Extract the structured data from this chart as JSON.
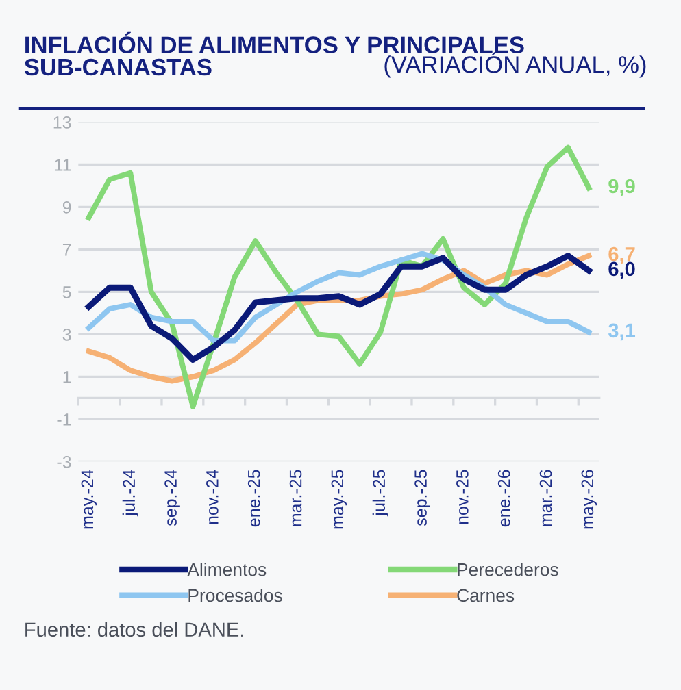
{
  "chart_data": {
    "type": "line",
    "title": "INFLACIÓN DE ALIMENTOS Y PRINCIPALES SUB-CANASTAS",
    "subtitle": "(VARIACIÓN ANUAL, %)",
    "categories": [
      "may.-24",
      null,
      "jul.-24",
      null,
      "sep.-24",
      null,
      "nov.-24",
      null,
      "ene.-25",
      null,
      "mar.-25",
      null,
      "may.-25",
      null,
      "jul.-25",
      null,
      "sep.-25",
      null,
      "nov.-25",
      null,
      "ene.-26",
      null,
      "mar.-26",
      null,
      "may.-26"
    ],
    "series": [
      {
        "name": "Alimentos",
        "color": "#0b1a78",
        "values": [
          4.3,
          5.2,
          5.2,
          3.4,
          2.8,
          1.8,
          2.4,
          3.2,
          4.5,
          4.6,
          4.7,
          4.7,
          4.8,
          4.4,
          4.9,
          6.2,
          6.2,
          6.6,
          5.6,
          5.1,
          5.1,
          5.8,
          6.2,
          6.7,
          6.0
        ],
        "value_labels": [
          null,
          null,
          null,
          null,
          null,
          null,
          null,
          null,
          null,
          null,
          null,
          null,
          null,
          null,
          null,
          null,
          null,
          null,
          null,
          null,
          null,
          null,
          null,
          null,
          "6,0"
        ]
      },
      {
        "name": "Procesados",
        "color": "#8ec6f0",
        "values": [
          3.3,
          4.2,
          4.4,
          3.8,
          3.6,
          3.6,
          2.7,
          2.7,
          3.8,
          4.4,
          5.0,
          5.5,
          5.9,
          5.8,
          6.2,
          6.5,
          6.8,
          6.5,
          5.8,
          5.2,
          4.4,
          4.0,
          3.6,
          3.6,
          3.1
        ],
        "value_labels": [
          null,
          null,
          null,
          null,
          null,
          null,
          null,
          null,
          null,
          null,
          null,
          null,
          null,
          null,
          null,
          null,
          null,
          null,
          null,
          null,
          null,
          null,
          null,
          null,
          "3,1"
        ]
      },
      {
        "name": "Perecederos",
        "color": "#84d877",
        "values": [
          8.5,
          10.3,
          10.6,
          5.0,
          3.5,
          -0.4,
          2.6,
          5.7,
          7.4,
          5.9,
          4.6,
          3.0,
          2.9,
          1.6,
          3.1,
          6.5,
          6.2,
          7.5,
          5.2,
          4.4,
          5.4,
          8.5,
          10.9,
          11.8,
          9.9
        ],
        "value_labels": [
          null,
          null,
          null,
          null,
          null,
          null,
          null,
          null,
          null,
          null,
          null,
          null,
          null,
          null,
          null,
          null,
          null,
          null,
          null,
          null,
          null,
          null,
          null,
          null,
          "9,9"
        ]
      },
      {
        "name": "Carnes",
        "color": "#f6b174",
        "values": [
          2.2,
          1.9,
          1.3,
          1.0,
          0.8,
          1.0,
          1.3,
          1.8,
          2.6,
          3.5,
          4.4,
          4.6,
          4.6,
          4.6,
          4.8,
          4.9,
          5.1,
          5.6,
          6.0,
          5.4,
          5.8,
          6.0,
          5.8,
          6.3,
          6.7
        ],
        "value_labels": [
          null,
          null,
          null,
          null,
          null,
          null,
          null,
          null,
          null,
          null,
          null,
          null,
          null,
          null,
          null,
          null,
          null,
          null,
          null,
          null,
          null,
          null,
          null,
          null,
          "6,7"
        ]
      }
    ],
    "ylim": [
      -3,
      13
    ],
    "yticks": [
      -3,
      -1,
      1,
      3,
      5,
      7,
      9,
      11,
      13
    ],
    "grid": "y",
    "legend": "bottom",
    "marker": "none",
    "line_style": "solid",
    "annotations": [
      "Fuente: datos del DANE."
    ]
  }
}
